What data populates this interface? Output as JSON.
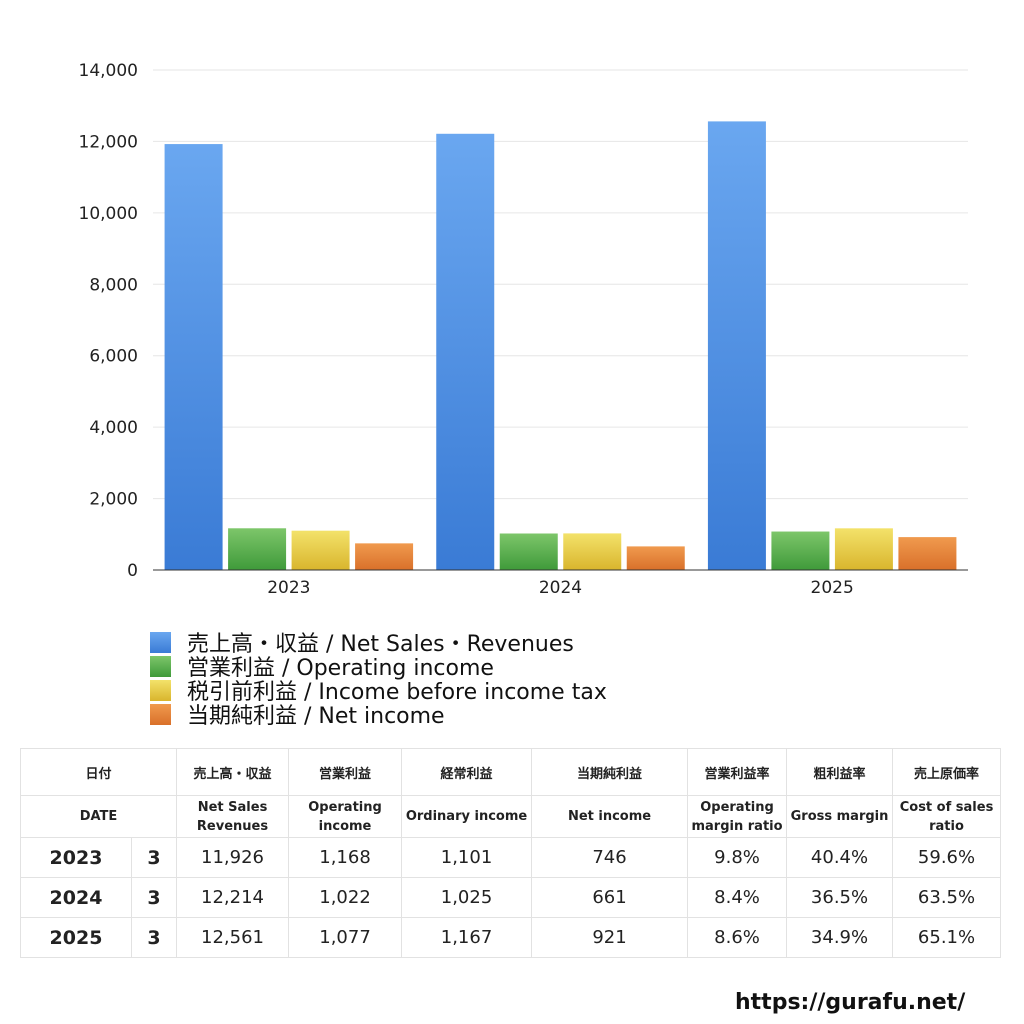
{
  "chart_data": {
    "type": "bar",
    "categories": [
      "2023",
      "2024",
      "2025"
    ],
    "ylim": [
      0,
      14000
    ],
    "yticks": [
      0,
      2000,
      4000,
      6000,
      8000,
      10000,
      12000,
      14000
    ],
    "ytick_labels": [
      "0",
      "2,000",
      "4,000",
      "6,000",
      "8,000",
      "10,000",
      "12,000",
      "14,000"
    ],
    "grid": true,
    "legend_position": "bottom",
    "series": [
      {
        "name": "売上高・収益 / Net Sales・Revenues",
        "values": [
          11926,
          12214,
          12561
        ],
        "color": "#3a7bd5",
        "color_light": "#6aa7f0"
      },
      {
        "name": "営業利益 / Operating income",
        "values": [
          1168,
          1022,
          1077
        ],
        "color": "#3f9a3a",
        "color_light": "#7dc66a"
      },
      {
        "name": "税引前利益 / Income before income tax",
        "values": [
          1101,
          1025,
          1167
        ],
        "color": "#d9b52d",
        "color_light": "#f3e26a"
      },
      {
        "name": "当期純利益 / Net income",
        "values": [
          746,
          661,
          921
        ],
        "color": "#d9702a",
        "color_light": "#f09a4e"
      }
    ]
  },
  "table": {
    "headers_jp": [
      "日付",
      "売上高・収益",
      "営業利益",
      "経常利益",
      "当期純利益",
      "営業利益率",
      "粗利益率",
      "売上原価率"
    ],
    "headers_en": [
      "DATE",
      "Net Sales\nRevenues",
      "Operating\nincome",
      "Ordinary income",
      "Net income",
      "Operating\nmargin ratio",
      "Gross margin",
      "Cost of sales\nratio"
    ],
    "rows": [
      {
        "year": "2023",
        "month": "3",
        "values": [
          "11,926",
          "1,168",
          "1,101",
          "746",
          "9.8%",
          "40.4%",
          "59.6%"
        ]
      },
      {
        "year": "2024",
        "month": "3",
        "values": [
          "12,214",
          "1,022",
          "1,025",
          "661",
          "8.4%",
          "36.5%",
          "63.5%"
        ]
      },
      {
        "year": "2025",
        "month": "3",
        "values": [
          "12,561",
          "1,077",
          "1,167",
          "921",
          "8.6%",
          "34.9%",
          "65.1%"
        ]
      }
    ]
  },
  "source": "https://gurafu.net/"
}
